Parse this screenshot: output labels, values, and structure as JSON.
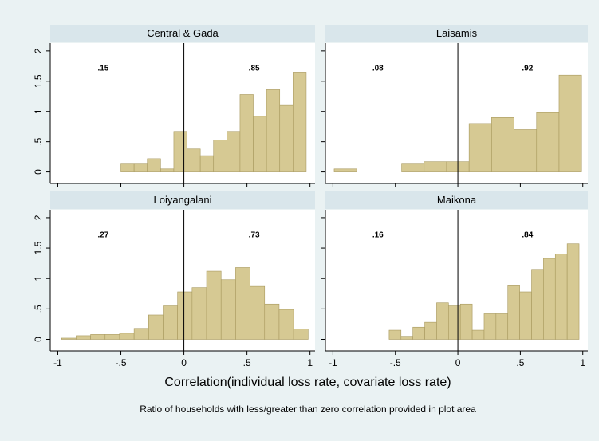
{
  "chart_data": [
    {
      "type": "histogram",
      "title": "Central & Gada",
      "color": "#d6c993",
      "bins": [
        -0.5,
        -0.395,
        -0.29,
        -0.185,
        -0.08,
        0.025,
        0.13,
        0.235,
        0.34,
        0.445,
        0.55,
        0.655,
        0.76,
        0.865,
        0.97
      ],
      "values": [
        0.13,
        0.13,
        0.22,
        0.05,
        0.67,
        0.38,
        0.27,
        0.53,
        0.67,
        1.28,
        0.92,
        1.36,
        1.1,
        1.65
      ],
      "annotations": [
        ".15",
        ".85"
      ]
    },
    {
      "type": "histogram",
      "title": "Laisamis",
      "color": "#d6c993",
      "bins": [
        -0.99,
        -0.81,
        -0.63,
        -0.45,
        -0.27,
        -0.09,
        0.09,
        0.27,
        0.45,
        0.63,
        0.81,
        0.99
      ],
      "values": [
        0.05,
        0,
        0,
        0.13,
        0.17,
        0.17,
        0.8,
        0.9,
        0.7,
        0.98,
        1.6
      ],
      "annotations": [
        ".08",
        ".92"
      ]
    },
    {
      "type": "histogram",
      "title": "Loiyangalani",
      "color": "#d6c993",
      "bins": [
        -0.97,
        -0.855,
        -0.74,
        -0.625,
        -0.51,
        -0.395,
        -0.28,
        -0.165,
        -0.05,
        0.065,
        0.18,
        0.295,
        0.41,
        0.525,
        0.64,
        0.755,
        0.87,
        0.985
      ],
      "values": [
        0.02,
        0.06,
        0.08,
        0.08,
        0.1,
        0.18,
        0.4,
        0.55,
        0.78,
        0.85,
        1.12,
        0.98,
        1.18,
        0.87,
        0.58,
        0.49,
        0.17
      ],
      "annotations": [
        ".27",
        ".73"
      ]
    },
    {
      "type": "histogram",
      "title": "Maikona",
      "color": "#d6c993",
      "bins": [
        -0.55,
        -0.455,
        -0.36,
        -0.265,
        -0.17,
        -0.075,
        0.02,
        0.115,
        0.21,
        0.305,
        0.4,
        0.495,
        0.59,
        0.685,
        0.78,
        0.875,
        0.97
      ],
      "values": [
        0.15,
        0.05,
        0.2,
        0.28,
        0.6,
        0.55,
        0.58,
        0.15,
        0.42,
        0.42,
        0.88,
        0.78,
        1.15,
        1.33,
        1.4,
        1.57
      ],
      "annotations": [
        ".16",
        ".84"
      ]
    }
  ],
  "xlabel": "Correlation(individual loss rate, covariate loss rate)",
  "note": "Ratio of households with less/greater than zero correlation provided in plot area",
  "xlim": [
    -1.06,
    1.04
  ],
  "xticks": [
    -1,
    {
      "value": -0.5,
      "label": "-.5"
    },
    0,
    {
      "value": 0.5,
      "label": ".5"
    },
    1
  ],
  "ylim": [
    -0.19,
    2.13
  ],
  "yticks": [
    0,
    {
      "value": 0.5,
      "label": ".5"
    },
    1,
    1.5,
    2
  ],
  "xline": 0
}
